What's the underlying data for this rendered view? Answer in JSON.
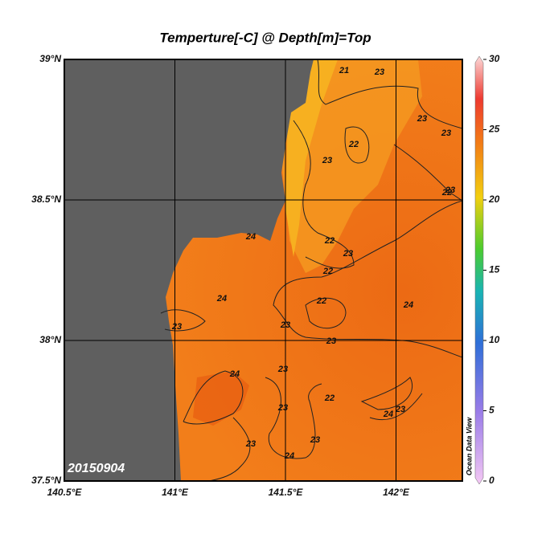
{
  "map": {
    "title": "Temperture[-C] @ Depth[m]=Top",
    "date": "20150904",
    "watermark": "Ocean Data View",
    "xlim": [
      140.5,
      142.3
    ],
    "ylim": [
      37.5,
      39
    ],
    "xticks": [
      {
        "value": 140.5,
        "label": "140.5°E"
      },
      {
        "value": 141,
        "label": "141°E"
      },
      {
        "value": 141.5,
        "label": "141.5°E"
      },
      {
        "value": 142,
        "label": "142°E"
      }
    ],
    "yticks": [
      {
        "value": 37.5,
        "label": "37.5°N"
      },
      {
        "value": 38,
        "label": "38°N"
      },
      {
        "value": 38.5,
        "label": "38.5°N"
      },
      {
        "value": 39,
        "label": "39°N"
      }
    ],
    "colorbar": {
      "lim": [
        0,
        30
      ],
      "ticks": [
        0,
        5,
        10,
        15,
        20,
        25,
        30
      ]
    },
    "contour_labels": [
      "21",
      "23",
      "23",
      "23",
      "22",
      "23",
      "22",
      "22",
      "22",
      "23",
      "24",
      "24",
      "23",
      "22",
      "23",
      "24",
      "24",
      "23",
      "22",
      "23",
      "23",
      "23",
      "24",
      "24",
      "23",
      "23",
      "23"
    ]
  }
}
